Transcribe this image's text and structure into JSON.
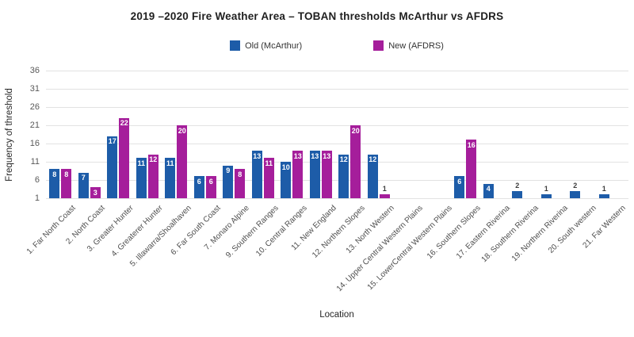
{
  "chart_data": {
    "type": "bar",
    "title": "2019 –2020 Fire Weather Area – TOBAN thresholds McArthur vs AFDRS",
    "xlabel": "Location",
    "ylabel": "Frequency of threshold",
    "yticks": [
      1,
      6,
      11,
      16,
      21,
      26,
      31,
      36
    ],
    "ylim": [
      0,
      38
    ],
    "grid": true,
    "legend_position": "top-center",
    "categories": [
      "1. Far North Coast",
      "2. North Coast",
      "3. Greater Hunter",
      "4. Greaterer Hunter",
      "5. Illawarra/Shoalhaven",
      "6. Far South Coast",
      "7. Monaro Alpine",
      "9. Southern Ranges",
      "10. Central Ranges",
      "11. New England",
      "12. Northern Slopes",
      "13. North Western",
      "14. Upper Central Western Plains",
      "15. LowerCentral Western Plains",
      "16. Southern Slopes",
      "17. Eastern Riverina",
      "18. Southern Riverina",
      "19. Northern Riverina",
      "20. South western",
      "21. Far Western"
    ],
    "series": [
      {
        "name": "Old (McArthur)",
        "color": "#1d5ca8",
        "values": [
          8,
          7,
          17,
          11,
          11,
          6,
          9,
          13,
          10,
          13,
          12,
          12,
          0,
          0,
          6,
          4,
          2,
          1,
          2,
          1
        ]
      },
      {
        "name": "New (AFDRS)",
        "color": "#a51e9b",
        "values": [
          8,
          3,
          22,
          12,
          20,
          6,
          8,
          11,
          13,
          13,
          20,
          1,
          0,
          0,
          16,
          0,
          0,
          0,
          0,
          0
        ]
      }
    ],
    "colors": {
      "grid": "#e2e2e2",
      "tick_text": "#595959",
      "axis_title_text": "#262626",
      "title_text": "#1f1f1f",
      "bar_label_inside": "#ffffff",
      "bar_label_above": "#3d3d3d"
    }
  }
}
